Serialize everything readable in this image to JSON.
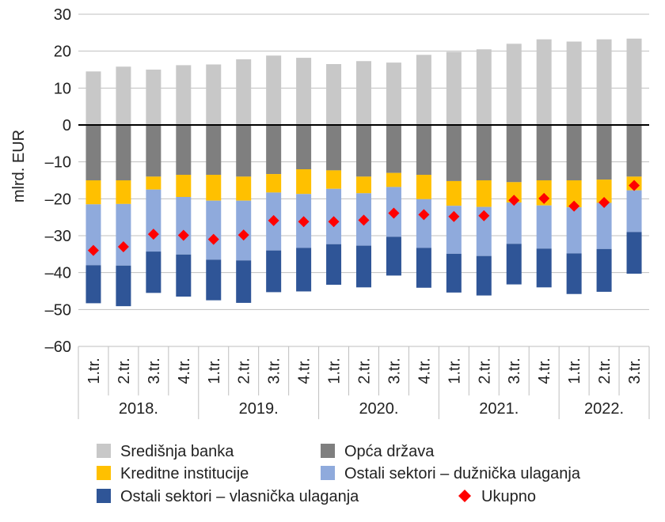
{
  "chart_data": {
    "type": "bar",
    "stacked": true,
    "title": "",
    "xlabel": "",
    "ylabel": "mlrd. EUR",
    "ylim": [
      -60,
      30
    ],
    "yticks": [
      30,
      20,
      10,
      0,
      -10,
      -20,
      -30,
      -40,
      -50,
      -60
    ],
    "ytick_labels": [
      "30",
      "20",
      "10",
      "0",
      "–10",
      "–20",
      "–30",
      "–40",
      "–50",
      "–60"
    ],
    "grid": "horizontal",
    "legend_position": "bottom",
    "years": [
      "2018.",
      "2019.",
      "2020.",
      "2021.",
      "2022."
    ],
    "categories": [
      "1.tr.",
      "2.tr.",
      "3.tr.",
      "4.tr.",
      "1.tr.",
      "2.tr.",
      "3.tr.",
      "4.tr.",
      "1.tr.",
      "2.tr.",
      "3.tr.",
      "4.tr.",
      "1.tr.",
      "2.tr.",
      "3.tr.",
      "4.tr.",
      "1.tr.",
      "2.tr.",
      "3.tr."
    ],
    "category_year": [
      0,
      0,
      0,
      0,
      1,
      1,
      1,
      1,
      2,
      2,
      2,
      2,
      3,
      3,
      3,
      3,
      4,
      4,
      4
    ],
    "series": [
      {
        "name": "Središnja banka",
        "color": "#c8c8c8",
        "values": [
          14.5,
          15.8,
          15.0,
          16.2,
          16.4,
          17.8,
          18.8,
          18.2,
          16.5,
          17.3,
          16.9,
          19.0,
          19.8,
          20.5,
          22.0,
          23.2,
          22.6,
          23.2,
          23.4
        ]
      },
      {
        "name": "Opća država",
        "color": "#7f7f7f",
        "values": [
          -15.0,
          -15.0,
          -14.0,
          -13.5,
          -13.5,
          -14.0,
          -13.3,
          -12.0,
          -12.3,
          -14.0,
          -13.0,
          -13.5,
          -15.2,
          -15.0,
          -15.5,
          -15.0,
          -15.0,
          -14.8,
          -14.0
        ]
      },
      {
        "name": "Kreditne institucije",
        "color": "#ffc000",
        "values": [
          -6.5,
          -6.4,
          -3.5,
          -6.0,
          -7.0,
          -6.5,
          -5.0,
          -6.7,
          -5.0,
          -4.5,
          -3.8,
          -6.6,
          -6.7,
          -7.2,
          -5.5,
          -6.8,
          -7.3,
          -6.3,
          -3.7
        ]
      },
      {
        "name": "Ostali sektori – dužnička ulaganja",
        "color": "#8faadc",
        "values": [
          -16.5,
          -16.7,
          -16.8,
          -15.6,
          -16.0,
          -16.2,
          -15.7,
          -14.6,
          -15.0,
          -14.2,
          -13.5,
          -13.2,
          -13.0,
          -13.3,
          -11.2,
          -11.7,
          -12.5,
          -12.5,
          -11.3
        ]
      },
      {
        "name": "Ostali sektori – vlasnička ulaganja",
        "color": "#2f5597",
        "values": [
          -10.3,
          -11.0,
          -11.2,
          -11.4,
          -11.0,
          -11.5,
          -11.3,
          -11.8,
          -11.0,
          -11.3,
          -10.5,
          -10.8,
          -10.5,
          -10.7,
          -11.0,
          -10.5,
          -11.0,
          -11.6,
          -11.3
        ]
      },
      {
        "name": "Ukupno",
        "type": "marker",
        "color": "#ff0000",
        "values": [
          -34.0,
          -33.0,
          -29.6,
          -29.9,
          -31.0,
          -29.8,
          -25.9,
          -26.2,
          -26.2,
          -25.8,
          -23.9,
          -24.3,
          -24.8,
          -24.6,
          -20.4,
          -19.9,
          -22.0,
          -21.0,
          -16.4
        ]
      }
    ]
  }
}
